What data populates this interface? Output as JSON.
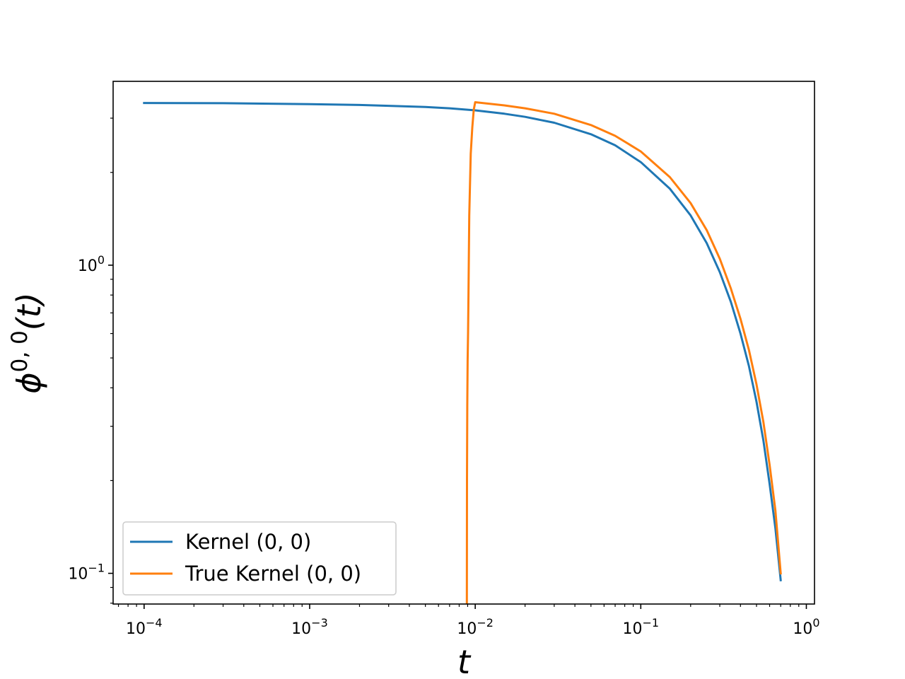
{
  "chart_data": {
    "type": "line",
    "title": "",
    "xlabel": "t",
    "ylabel_base": "ϕ",
    "ylabel_sup": "0, 0",
    "ylabel_tail": "(t)",
    "xscale": "log",
    "yscale": "log",
    "xlim": [
      6.5e-05,
      1.12
    ],
    "ylim": [
      0.0795,
      3.95
    ],
    "grid": false,
    "legend_position": "lower-left",
    "x_major_ticks": [
      {
        "value": 0.0001,
        "base": "10",
        "exp": "−4"
      },
      {
        "value": 0.001,
        "base": "10",
        "exp": "−3"
      },
      {
        "value": 0.01,
        "base": "10",
        "exp": "−2"
      },
      {
        "value": 0.1,
        "base": "10",
        "exp": "−1"
      },
      {
        "value": 1,
        "base": "10",
        "exp": "0"
      }
    ],
    "y_major_ticks": [
      {
        "value": 0.1,
        "base": "10",
        "exp": "−1"
      },
      {
        "value": 1,
        "base": "10",
        "exp": "0"
      }
    ],
    "series": [
      {
        "name": "Kernel (0, 0)",
        "color": "#1f77b4",
        "x": [
          0.0001,
          0.0003,
          0.001,
          0.002,
          0.003,
          0.005,
          0.007,
          0.01,
          0.015,
          0.02,
          0.03,
          0.05,
          0.07,
          0.1,
          0.15,
          0.2,
          0.25,
          0.3,
          0.35,
          0.4,
          0.45,
          0.5,
          0.55,
          0.6,
          0.65,
          0.7
        ],
        "y": [
          3.36,
          3.355,
          3.33,
          3.31,
          3.29,
          3.26,
          3.23,
          3.18,
          3.1,
          3.03,
          2.9,
          2.66,
          2.45,
          2.16,
          1.77,
          1.45,
          1.18,
          0.95,
          0.76,
          0.6,
          0.47,
          0.36,
          0.27,
          0.195,
          0.14,
          0.095
        ]
      },
      {
        "name": "True Kernel (0, 0)",
        "color": "#ff7f0e",
        "x": [
          0.0089,
          0.00892,
          0.00895,
          0.009,
          0.00905,
          0.0091,
          0.0092,
          0.0094,
          0.0096,
          0.0098,
          0.01,
          0.015,
          0.02,
          0.03,
          0.05,
          0.07,
          0.1,
          0.15,
          0.2,
          0.25,
          0.3,
          0.35,
          0.4,
          0.45,
          0.5,
          0.55,
          0.6,
          0.65,
          0.7
        ],
        "y": [
          0.078,
          0.2,
          0.35,
          0.49,
          0.6,
          0.8,
          1.45,
          2.3,
          2.8,
          3.2,
          3.38,
          3.3,
          3.23,
          3.1,
          2.85,
          2.63,
          2.34,
          1.93,
          1.59,
          1.3,
          1.05,
          0.84,
          0.67,
          0.53,
          0.41,
          0.31,
          0.225,
          0.16,
          0.1
        ]
      }
    ]
  }
}
